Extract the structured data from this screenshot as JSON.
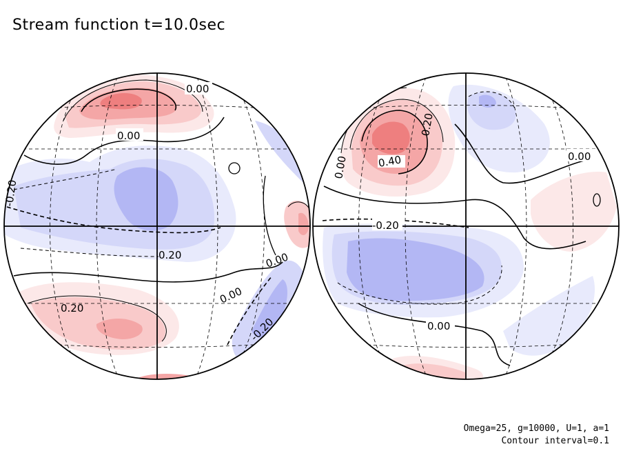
{
  "title": "Stream function t=10.0sec",
  "footnote": {
    "params": "Omega=25, g=10000, U=1, a=1",
    "interval": "Contour interval=0.1"
  },
  "colors": {
    "positive": "#f07070",
    "negative": "#8a8ff0",
    "contour": "#000000"
  },
  "chart_data": {
    "type": "heatmap",
    "title": "Stream function t=10.0sec",
    "projection": "orthographic (two hemispheres)",
    "contour_interval": 0.1,
    "contour_labels": {
      "left": [
        "0.00",
        "0.00",
        "-0.20",
        "0.20",
        "0.00",
        "0.00",
        "0.20",
        "-0.20"
      ],
      "right": [
        "0.20",
        "0.40",
        "0.00",
        "0.00",
        "-0.20",
        "0.00"
      ]
    },
    "extrema": {
      "left": [
        {
          "sign": "positive",
          "level": 0.4,
          "region": "north"
        },
        {
          "sign": "negative",
          "level": -0.3,
          "region": "center"
        },
        {
          "sign": "positive",
          "level": 0.3,
          "region": "south"
        },
        {
          "sign": "negative",
          "level": -0.3,
          "region": "southeast"
        }
      ],
      "right": [
        {
          "sign": "positive",
          "level": 0.5,
          "region": "northwest"
        },
        {
          "sign": "negative",
          "level": -0.2,
          "region": "north"
        },
        {
          "sign": "negative",
          "level": -0.3,
          "region": "southwest"
        },
        {
          "sign": "positive",
          "level": 0.1,
          "region": "east"
        },
        {
          "sign": "positive",
          "level": 0.2,
          "region": "south"
        }
      ]
    }
  }
}
